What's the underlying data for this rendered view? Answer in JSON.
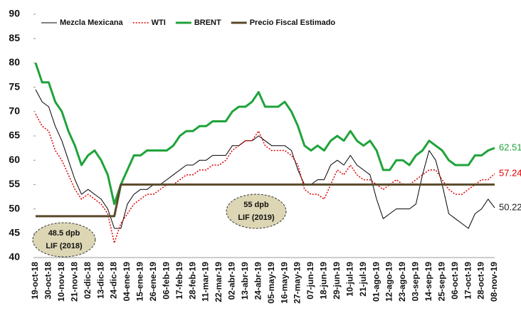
{
  "chart_data": {
    "type": "line",
    "categories": [
      "19-oct-18",
      null,
      "30-oct-18",
      null,
      "10-nov-18",
      null,
      "21-nov-18",
      null,
      "02-dic-18",
      null,
      "13-dic-18",
      null,
      "24-dic-18",
      null,
      "04-ene-19",
      null,
      "15-ene-19",
      null,
      "26-ene-19",
      null,
      "06-feb-19",
      null,
      "17-feb-19",
      null,
      "28-feb-19",
      null,
      "11-mar-19",
      null,
      "22-mar-19",
      null,
      "02-abr-19",
      null,
      "13-abr-19",
      null,
      "24-abr-19",
      null,
      "05-may-19",
      null,
      "16-may-19",
      null,
      "27-may-19",
      null,
      "07-jun-19",
      null,
      "18-jun-19",
      null,
      "29-jun-19",
      null,
      "10-jul-19",
      null,
      "21-jul-19",
      null,
      "01-ago-19",
      null,
      "12-ago-19",
      null,
      "23-ago-19",
      null,
      "03-sep-19",
      null,
      "14-sep-19",
      null,
      "25-sep-19",
      null,
      "06-oct-19",
      null,
      "17-oct-19",
      null,
      "28-oct-19",
      null,
      "08-nov-19"
    ],
    "series": [
      {
        "name": "Mezcla Mexicana",
        "color": "#000000",
        "style": "thin",
        "values": [
          74.5,
          72,
          71,
          67,
          64,
          60,
          56,
          53,
          54,
          53,
          52,
          50,
          46,
          46,
          51,
          53,
          54,
          54,
          55,
          55,
          56,
          57,
          58,
          59,
          59,
          60,
          60,
          61,
          61,
          61,
          63,
          63,
          64,
          64,
          65,
          64,
          63,
          63,
          63,
          62,
          58,
          55,
          55,
          56,
          56,
          59,
          60,
          59,
          61,
          59,
          58,
          57,
          52,
          48,
          49,
          50,
          50,
          50,
          51,
          57,
          62,
          60,
          55,
          49,
          48,
          47,
          46,
          49,
          50,
          52,
          50.22
        ]
      },
      {
        "name": "WTI",
        "color": "#e00000",
        "style": "dotted",
        "values": [
          69.5,
          67,
          66,
          62,
          60,
          57,
          54,
          52,
          53,
          52,
          51,
          49,
          43,
          47,
          49,
          51,
          52,
          53,
          53,
          54,
          55,
          55,
          56,
          57,
          57,
          58,
          58,
          59,
          59,
          60,
          62,
          63,
          64,
          64,
          66,
          63,
          62,
          62,
          62,
          61,
          59,
          54,
          53,
          53,
          52,
          55,
          58,
          57,
          59,
          57,
          56,
          56,
          55,
          54,
          55,
          56,
          55,
          55,
          56,
          57,
          58,
          58,
          56,
          54,
          53,
          53,
          54,
          55,
          56,
          56,
          57.24
        ]
      },
      {
        "name": "BRENT",
        "color": "#1fa33a",
        "style": "bold",
        "values": [
          80,
          76,
          76,
          72,
          70,
          66,
          63,
          59,
          61,
          62,
          60,
          57,
          51,
          55,
          58,
          61,
          61,
          62,
          62,
          62,
          62,
          63,
          65,
          66,
          66,
          67,
          67,
          68,
          68,
          68,
          70,
          71,
          71,
          72,
          74,
          71,
          71,
          71,
          72,
          70,
          67,
          63,
          62,
          63,
          62,
          64,
          65,
          64,
          66,
          64,
          63,
          64,
          62,
          58,
          58,
          60,
          60,
          59,
          61,
          62,
          64,
          63,
          62,
          60,
          59,
          59,
          59,
          61,
          61,
          62,
          62.51
        ]
      },
      {
        "name": "Precio Fiscal Estimado",
        "color": "#5a4a2a",
        "style": "bold",
        "values": [
          48.5,
          48.5,
          48.5,
          48.5,
          48.5,
          48.5,
          48.5,
          48.5,
          48.5,
          48.5,
          48.5,
          48.5,
          48.5,
          55,
          55,
          55,
          55,
          55,
          55,
          55,
          55,
          55,
          55,
          55,
          55,
          55,
          55,
          55,
          55,
          55,
          55,
          55,
          55,
          55,
          55,
          55,
          55,
          55,
          55,
          55,
          55,
          55,
          55,
          55,
          55,
          55,
          55,
          55,
          55,
          55,
          55,
          55,
          55,
          55,
          55,
          55,
          55,
          55,
          55,
          55,
          55,
          55,
          55,
          55,
          55,
          55,
          55,
          55,
          55,
          55,
          55
        ]
      }
    ],
    "end_labels": [
      0,
      1,
      2
    ],
    "annotations": [
      [
        "48.5 dpb",
        "LIF (2018)"
      ],
      [
        "55 dpb",
        "LIF (2019)"
      ]
    ],
    "ylim": [
      40,
      90
    ],
    "yticks": [
      40,
      45,
      50,
      55,
      60,
      65,
      70,
      75,
      80,
      85,
      90
    ],
    "grid": false
  }
}
